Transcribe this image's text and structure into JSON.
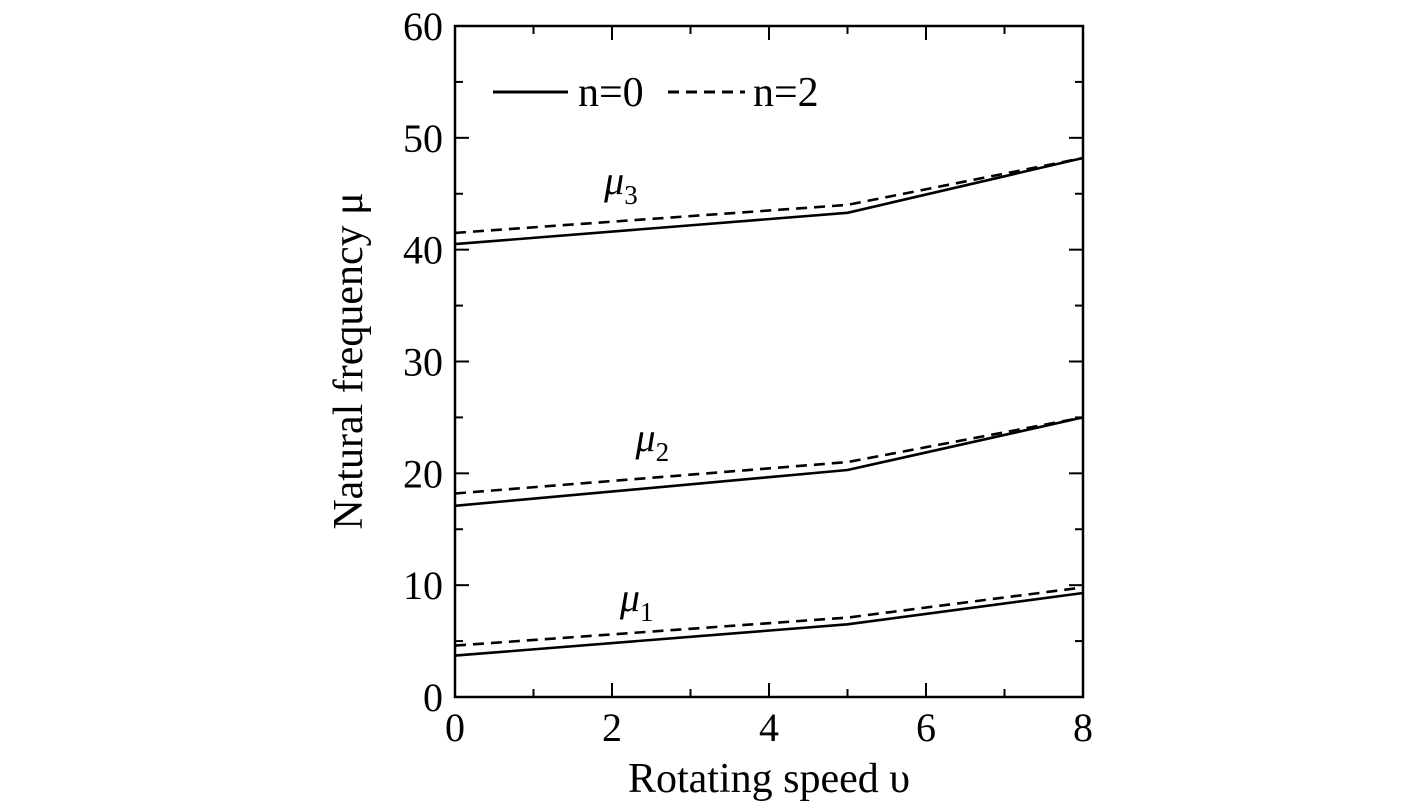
{
  "chart_data": {
    "type": "line",
    "xlabel": "Rotating speed υ",
    "ylabel": "Natural frequency μ",
    "xlim": [
      0,
      8
    ],
    "ylim": [
      0,
      60
    ],
    "xticks": [
      0,
      2,
      4,
      6,
      8
    ],
    "yticks": [
      0,
      10,
      20,
      30,
      40,
      50,
      60
    ],
    "xminor": [
      1,
      3,
      5,
      7
    ],
    "yminor": [
      5,
      15,
      25,
      35,
      45,
      55
    ],
    "grid": false,
    "legend_position": "top-left",
    "legend": [
      {
        "label": "n=0",
        "style": "solid"
      },
      {
        "label": "n=2",
        "style": "dashed"
      }
    ],
    "x": [
      0,
      5,
      8
    ],
    "series": [
      {
        "label": "μ1",
        "style": "solid",
        "values": [
          3.7,
          6.5,
          9.3
        ]
      },
      {
        "label": "μ1",
        "style": "dashed",
        "values": [
          4.6,
          7.1,
          9.8
        ]
      },
      {
        "label": "μ2",
        "style": "solid",
        "values": [
          17.1,
          20.3,
          25.0
        ]
      },
      {
        "label": "μ2",
        "style": "dashed",
        "values": [
          18.2,
          21.0,
          25.0
        ]
      },
      {
        "label": "μ3",
        "style": "solid",
        "values": [
          40.5,
          43.3,
          48.2
        ]
      },
      {
        "label": "μ3",
        "style": "dashed",
        "values": [
          41.5,
          44.0,
          48.2
        ]
      }
    ],
    "annotations": [
      {
        "text": "μ1",
        "base": "μ",
        "sub": "1",
        "x": 2.1,
        "y": 7.7
      },
      {
        "text": "μ2",
        "base": "μ",
        "sub": "2",
        "x": 2.3,
        "y": 22.0
      },
      {
        "text": "μ3",
        "base": "μ",
        "sub": "3",
        "x": 1.9,
        "y": 45.0
      }
    ]
  }
}
